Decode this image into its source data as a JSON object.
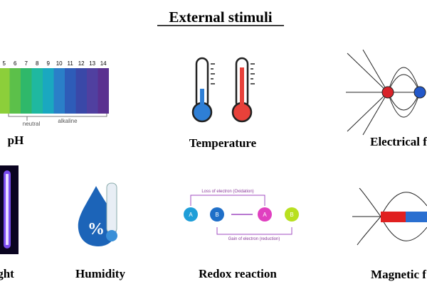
{
  "header": {
    "title": "External stimuli"
  },
  "ph": {
    "scale": [
      "5",
      "6",
      "7",
      "8",
      "9",
      "10",
      "11",
      "12",
      "13",
      "14"
    ],
    "neutral": "neutral",
    "alkaline": "alkaline",
    "label": "pH"
  },
  "temperature": {
    "label": "Temperature"
  },
  "electrical": {
    "label": "Electrical f"
  },
  "light": {
    "label": "ght"
  },
  "humidity": {
    "symbol": "%",
    "label": "Humidity"
  },
  "redox": {
    "oxidation": "Loss of electron (Oxidation)",
    "reduction": "Gain of electron (reduction)",
    "a": "A",
    "b": "B",
    "label": "Redox reaction"
  },
  "magnetic": {
    "label": "Magnetic f"
  }
}
